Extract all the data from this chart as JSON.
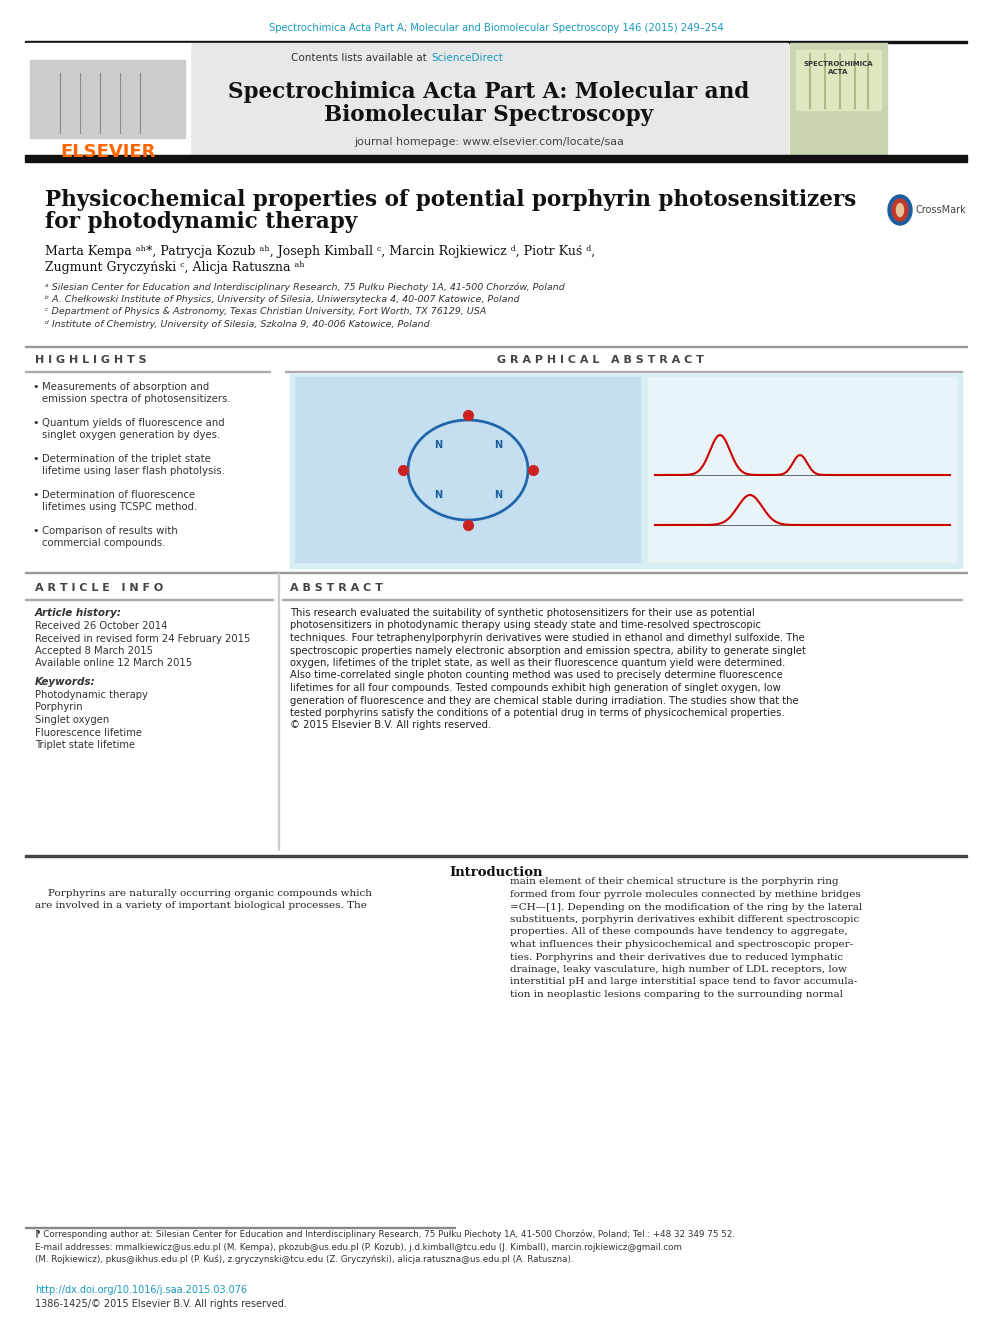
{
  "page_bg": "#ffffff",
  "top_url_text": "Spectrochimica Acta Part A; Molecular and Biomolecular Spectroscopy 146 (2015) 249–254",
  "top_url_color": "#1a9ac0",
  "header_bg": "#e8e8e8",
  "contents_text": "Contents lists available at ",
  "sciencedirect_color": "#1a9ac0",
  "elsevier_color": "#ff6600",
  "article_title_line1": "Physicochemical properties of potential porphyrin photosensitizers",
  "article_title_line2": "for photodynamic therapy",
  "authors_line1": "Marta Kempa ᵃʰ*, Patrycja Kozub ᵃʰ, Joseph Kimball ᶜ, Marcin Rojkiewicz ᵈ, Piotr Kuś ᵈ,",
  "authors_line2": "Zugmunt Gryczyński ᶜ, Alicja Ratuszna ᵃʰ",
  "affil_a": "ᵃ Silesian Center for Education and Interdisciplinary Research, 75 Pułku Piechoty 1A, 41-500 Chorzów, Poland",
  "affil_b": "ᵇ A. Chełkowski Institute of Physics, University of Silesia, Uniwersytecka 4, 40-007 Katowice, Poland",
  "affil_c": "ᶜ Department of Physics & Astronomy, Texas Christian University, Fort Worth, TX 76129, USA",
  "affil_d": "ᵈ Institute of Chemistry, University of Silesia, Szkolna 9, 40-006 Katowice, Poland",
  "highlights_title": "H I G H L I G H T S",
  "highlights": [
    "Measurements of absorption and\nemission spectra of photosensitizers.",
    "Quantum yields of fluorescence and\nsinglet oxygen generation by dyes.",
    "Determination of the triplet state\nlifetime using laser flash photolysis.",
    "Determination of fluorescence\nlifetimes using TCSPC method.",
    "Comparison of results with\ncommercial compounds."
  ],
  "graphical_title": "G R A P H I C A L   A B S T R A C T",
  "article_info_title": "A R T I C L E   I N F O",
  "article_history_title": "Article history:",
  "received": "Received 26 October 2014",
  "revised": "Received in revised form 24 February 2015",
  "accepted": "Accepted 8 March 2015",
  "available": "Available online 12 March 2015",
  "keywords_title": "Keywords:",
  "keywords": [
    "Photodynamic therapy",
    "Porphyrin",
    "Singlet oxygen",
    "Fluorescence lifetime",
    "Triplet state lifetime"
  ],
  "abstract_title": "A B S T R A C T",
  "abstract_lines": [
    "This research evaluated the suitability of synthetic photosensitizers for their use as potential",
    "photosensitizers in photodynamic therapy using steady state and time-resolved spectroscopic",
    "techniques. Four tetraphenylporphyrin derivatives were studied in ethanol and dimethyl sulfoxide. The",
    "spectroscopic properties namely electronic absorption and emission spectra, ability to generate singlet",
    "oxygen, lifetimes of the triplet state, as well as their fluorescence quantum yield were determined.",
    "Also time-correlated single photon counting method was used to precisely determine fluorescence",
    "lifetimes for all four compounds. Tested compounds exhibit high generation of singlet oxygen, low",
    "generation of fluorescence and they are chemical stable during irradiation. The studies show that the",
    "tested porphyrins satisfy the conditions of a potential drug in terms of physicochemical properties.",
    "© 2015 Elsevier B.V. All rights reserved."
  ],
  "intro_title": "Introduction",
  "intro_left_lines": [
    "    Porphyrins are naturally occurring organic compounds which",
    "are involved in a variety of important biological processes. The"
  ],
  "intro_right_lines": [
    "main element of their chemical structure is the porphyrin ring",
    "formed from four pyrrole molecules connected by methine bridges",
    "=CH—[1]. Depending on the modification of the ring by the lateral",
    "substituents, porphyrin derivatives exhibit different spectroscopic",
    "properties. All of these compounds have tendency to aggregate,",
    "what influences their physicochemical and spectroscopic proper-",
    "ties. Porphyrins and their derivatives due to reduced lymphatic",
    "drainage, leaky vasculature, high number of LDL receptors, low",
    "interstitial pH and large interstitial space tend to favor accumula-",
    "tion in neoplastic lesions comparing to the surrounding normal"
  ],
  "footnote_star": "⁋ Corresponding author at: Silesian Center for Education and Interdisciplinary Research, 75 Pułku Piechoty 1A, 41-500 Chorzów, Poland; Tel.: +48 32 349 75 52.",
  "footnote_email_lines": [
    "E-mail addresses: mmalkiewicz@us.edu.pl (M. Kempa), pkozub@us.edu.pl (P. Kozub), j.d.kimball@tcu.edu (J. Kimball), marcin.rojkiewicz@gmail.com",
    "(M. Rojkiewicz), pkus@ikhus.edu.pl (P. Kuś), z.gryczynski@tcu.edu (Z. Gryczyński), alicja.ratuszna@us.edu.pl (A. Ratuszna)."
  ],
  "doi_text": "http://dx.doi.org/10.1016/j.saa.2015.03.076",
  "doi_color": "#1a9ac0",
  "issn_text": "1386-1425/© 2015 Elsevier B.V. All rights reserved."
}
